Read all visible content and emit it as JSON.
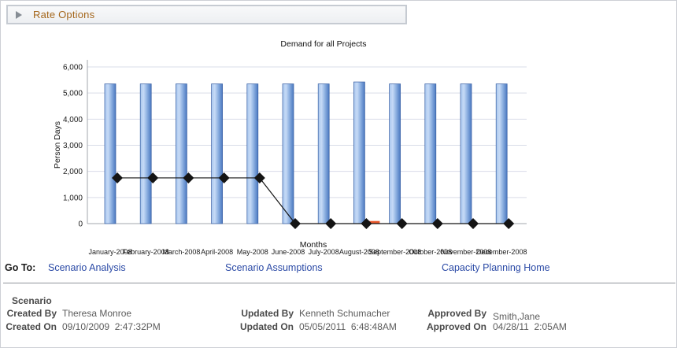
{
  "rate_options": {
    "label": "Rate Options",
    "state_icon": "collapsed-triangle"
  },
  "chart_data": {
    "type": "bar",
    "title": "Demand for all Projects",
    "xlabel": "Months",
    "ylabel": "Person Days",
    "ylim": [
      0,
      6000
    ],
    "ytick_step": 1000,
    "grid": true,
    "legend": "none",
    "categories": [
      "January-2008",
      "February-2008",
      "March-2008",
      "April-2008",
      "May-2008",
      "June-2008",
      "July-2008",
      "August-2008",
      "September-2008",
      "October-2008",
      "November-2008",
      "December-2008"
    ],
    "series": [
      {
        "name": "demand",
        "type": "bar",
        "color_light": "#b9d3f4",
        "color_dark": "#4a78c0",
        "values": [
          5350,
          5350,
          5350,
          5350,
          5350,
          5350,
          5350,
          5425,
          5350,
          5350,
          5350,
          5350
        ]
      },
      {
        "name": "highlight",
        "type": "bar",
        "color": "#e8572b",
        "values": [
          null,
          null,
          null,
          null,
          null,
          null,
          null,
          100,
          null,
          null,
          null,
          null
        ]
      },
      {
        "name": "staffed",
        "type": "line",
        "color": "#141414",
        "marker": "diamond",
        "values": [
          1750,
          1750,
          1750,
          1750,
          1750,
          0,
          0,
          0,
          0,
          0,
          0,
          0
        ]
      }
    ]
  },
  "go_to": {
    "label": "Go To:",
    "links": [
      {
        "label": "Scenario Analysis"
      },
      {
        "label": "Scenario Assumptions"
      },
      {
        "label": "Capacity Planning Home"
      }
    ]
  },
  "scenario": {
    "heading": "Scenario",
    "created_by_label": "Created By",
    "created_by": "Theresa Monroe",
    "created_on_label": "Created On",
    "created_on": "09/10/2009  2:47:32PM",
    "updated_by_label": "Updated By",
    "updated_by": "Kenneth Schumacher",
    "updated_on_label": "Updated On",
    "updated_on": "05/05/2011  6:48:48AM",
    "approved_by_label": "Approved By",
    "approved_by": "Smith,Jane",
    "approved_on_label": "Approved On",
    "approved_on": "04/28/11  2:05AM"
  }
}
